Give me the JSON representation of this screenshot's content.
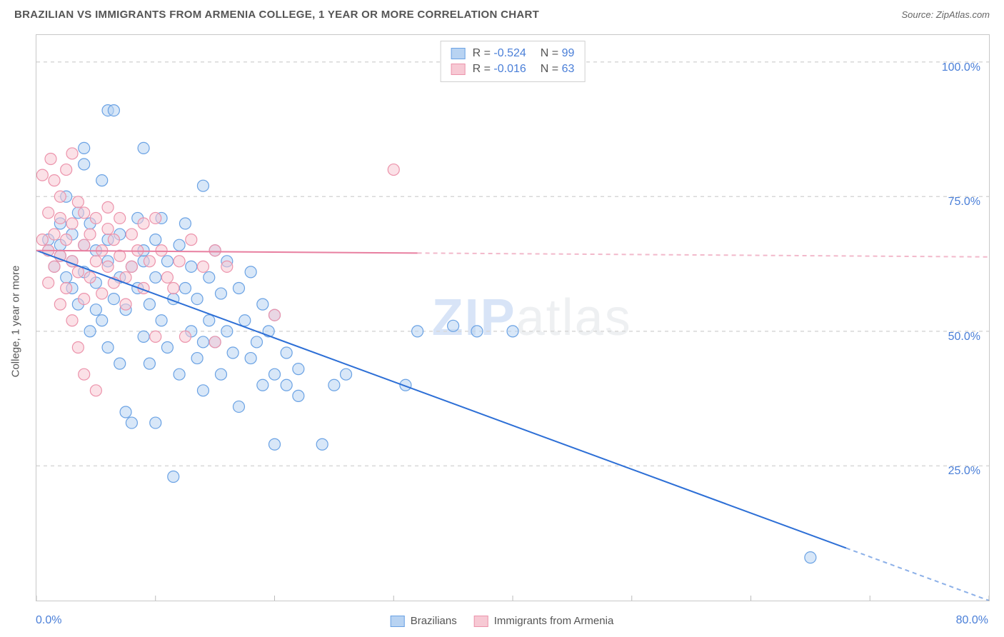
{
  "header": {
    "title": "BRAZILIAN VS IMMIGRANTS FROM ARMENIA COLLEGE, 1 YEAR OR MORE CORRELATION CHART",
    "source": "Source: ZipAtlas.com"
  },
  "chart": {
    "type": "scatter",
    "watermark": "ZIPatlas",
    "y_axis_label": "College, 1 year or more",
    "xlim": [
      0,
      80
    ],
    "ylim": [
      0,
      105
    ],
    "x_ticks": [
      0,
      10,
      20,
      30,
      40,
      50,
      60,
      70,
      80
    ],
    "x_tick_labels": {
      "0": "0.0%",
      "80": "80.0%"
    },
    "y_ticks": [
      25,
      50,
      75,
      100
    ],
    "y_tick_labels": {
      "25": "25.0%",
      "50": "50.0%",
      "75": "75.0%",
      "100": "100.0%"
    },
    "grid_color": "#d8d8d8",
    "background_color": "#ffffff",
    "axis_label_color": "#4a7fd8",
    "marker_radius": 8,
    "marker_opacity": 0.55,
    "series": [
      {
        "name": "Brazilians",
        "color_fill": "#b8d3f2",
        "color_stroke": "#6aa2e4",
        "R": "-0.524",
        "N": "99",
        "trend": {
          "solid_from_x": 0,
          "solid_to_x": 68,
          "dashed_to_x": 80,
          "y_at_x0": 65,
          "y_at_end": 0,
          "color": "#2d6fd6",
          "width": 2
        },
        "points": [
          [
            1,
            65
          ],
          [
            1,
            67
          ],
          [
            1.5,
            62
          ],
          [
            2,
            66
          ],
          [
            2,
            64
          ],
          [
            2,
            70
          ],
          [
            2.5,
            60
          ],
          [
            2.5,
            75
          ],
          [
            3,
            68
          ],
          [
            3,
            58
          ],
          [
            3,
            63
          ],
          [
            3.5,
            72
          ],
          [
            3.5,
            55
          ],
          [
            4,
            84
          ],
          [
            4,
            66
          ],
          [
            4,
            61
          ],
          [
            4.5,
            50
          ],
          [
            4.5,
            70
          ],
          [
            5,
            65
          ],
          [
            5,
            59
          ],
          [
            5,
            54
          ],
          [
            5.5,
            78
          ],
          [
            5.5,
            52
          ],
          [
            6,
            91
          ],
          [
            6,
            63
          ],
          [
            6,
            47
          ],
          [
            6,
            67
          ],
          [
            6.5,
            91
          ],
          [
            6.5,
            56
          ],
          [
            7,
            44
          ],
          [
            7,
            60
          ],
          [
            7,
            68
          ],
          [
            7.5,
            54
          ],
          [
            7.5,
            35
          ],
          [
            8,
            62
          ],
          [
            8,
            33
          ],
          [
            8.5,
            71
          ],
          [
            8.5,
            58
          ],
          [
            9,
            84
          ],
          [
            9,
            49
          ],
          [
            9,
            63
          ],
          [
            9.5,
            55
          ],
          [
            9.5,
            44
          ],
          [
            10,
            67
          ],
          [
            10,
            33
          ],
          [
            10,
            60
          ],
          [
            10.5,
            52
          ],
          [
            10.5,
            71
          ],
          [
            11,
            47
          ],
          [
            11,
            63
          ],
          [
            11.5,
            56
          ],
          [
            11.5,
            23
          ],
          [
            12,
            66
          ],
          [
            12,
            42
          ],
          [
            12.5,
            58
          ],
          [
            12.5,
            70
          ],
          [
            13,
            50
          ],
          [
            13,
            62
          ],
          [
            13.5,
            45
          ],
          [
            13.5,
            56
          ],
          [
            14,
            77
          ],
          [
            14,
            39
          ],
          [
            14.5,
            60
          ],
          [
            14.5,
            52
          ],
          [
            15,
            48
          ],
          [
            15,
            65
          ],
          [
            15.5,
            57
          ],
          [
            15.5,
            42
          ],
          [
            16,
            50
          ],
          [
            16,
            63
          ],
          [
            16.5,
            46
          ],
          [
            17,
            58
          ],
          [
            17,
            36
          ],
          [
            17.5,
            52
          ],
          [
            18,
            61
          ],
          [
            18,
            45
          ],
          [
            18.5,
            48
          ],
          [
            19,
            55
          ],
          [
            19,
            40
          ],
          [
            19.5,
            50
          ],
          [
            20,
            42
          ],
          [
            20,
            29
          ],
          [
            20,
            53
          ],
          [
            21,
            40
          ],
          [
            21,
            46
          ],
          [
            22,
            38
          ],
          [
            22,
            43
          ],
          [
            24,
            29
          ],
          [
            25,
            40
          ],
          [
            26,
            42
          ],
          [
            31,
            40
          ],
          [
            32,
            50
          ],
          [
            35,
            51
          ],
          [
            37,
            50
          ],
          [
            40,
            50
          ],
          [
            65,
            8
          ],
          [
            14,
            48
          ],
          [
            9,
            65
          ],
          [
            4,
            81
          ]
        ]
      },
      {
        "name": "Immigrants from Armenia",
        "color_fill": "#f7c9d4",
        "color_stroke": "#ec93ab",
        "R": "-0.016",
        "N": "63",
        "trend": {
          "solid_from_x": 0,
          "solid_to_x": 32,
          "dashed_to_x": 80,
          "y_at_x0": 65,
          "y_at_end": 63.8,
          "color": "#e87fa0",
          "width": 2
        },
        "points": [
          [
            0.5,
            67
          ],
          [
            0.5,
            79
          ],
          [
            1,
            65
          ],
          [
            1,
            72
          ],
          [
            1,
            59
          ],
          [
            1.2,
            82
          ],
          [
            1.5,
            68
          ],
          [
            1.5,
            62
          ],
          [
            1.5,
            78
          ],
          [
            2,
            64
          ],
          [
            2,
            71
          ],
          [
            2,
            55
          ],
          [
            2,
            75
          ],
          [
            2.5,
            67
          ],
          [
            2.5,
            58
          ],
          [
            2.5,
            80
          ],
          [
            3,
            83
          ],
          [
            3,
            63
          ],
          [
            3,
            70
          ],
          [
            3,
            52
          ],
          [
            3.5,
            74
          ],
          [
            3.5,
            61
          ],
          [
            3.5,
            47
          ],
          [
            4,
            66
          ],
          [
            4,
            72
          ],
          [
            4,
            56
          ],
          [
            4,
            42
          ],
          [
            4.5,
            68
          ],
          [
            4.5,
            60
          ],
          [
            5,
            63
          ],
          [
            5,
            71
          ],
          [
            5,
            39
          ],
          [
            5.5,
            65
          ],
          [
            5.5,
            57
          ],
          [
            6,
            69
          ],
          [
            6,
            62
          ],
          [
            6,
            73
          ],
          [
            6.5,
            59
          ],
          [
            6.5,
            67
          ],
          [
            7,
            64
          ],
          [
            7,
            71
          ],
          [
            7.5,
            60
          ],
          [
            7.5,
            55
          ],
          [
            8,
            68
          ],
          [
            8,
            62
          ],
          [
            8.5,
            65
          ],
          [
            9,
            58
          ],
          [
            9,
            70
          ],
          [
            9.5,
            63
          ],
          [
            10,
            71
          ],
          [
            10,
            49
          ],
          [
            10.5,
            65
          ],
          [
            11,
            60
          ],
          [
            11.5,
            58
          ],
          [
            12,
            63
          ],
          [
            12.5,
            49
          ],
          [
            13,
            67
          ],
          [
            14,
            62
          ],
          [
            15,
            48
          ],
          [
            15,
            65
          ],
          [
            16,
            62
          ],
          [
            20,
            53
          ],
          [
            30,
            80
          ]
        ]
      }
    ]
  },
  "legend_bottom": [
    {
      "label": "Brazilians",
      "fill": "#b8d3f2",
      "stroke": "#6aa2e4"
    },
    {
      "label": "Immigrants from Armenia",
      "fill": "#f7c9d4",
      "stroke": "#ec93ab"
    }
  ]
}
